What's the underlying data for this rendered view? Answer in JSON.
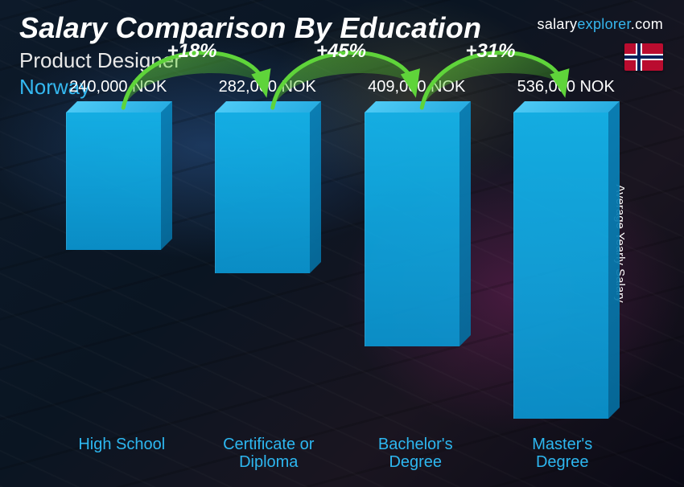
{
  "header": {
    "title": "Salary Comparison By Education",
    "subtitle": "Product Designer",
    "country": "Norway",
    "brand_prefix": "salary",
    "brand_mid": "explorer",
    "brand_suffix": ".com"
  },
  "flag": {
    "base": "#ba0c2f",
    "cross_outer": "#ffffff",
    "cross_inner": "#00205b"
  },
  "axis": {
    "ylabel": "Average Yearly Salary"
  },
  "chart": {
    "type": "bar",
    "currency": "NOK",
    "max_value": 560000,
    "bar_color": "#17a8e0",
    "bar_top_color": "#4cc9f5",
    "bar_side_color": "#0d8bc0",
    "label_color": "#ffffff",
    "category_color": "#2db7f0",
    "title_fontsize": 36,
    "value_fontsize": 20,
    "category_fontsize": 20,
    "pct_fontsize": 24,
    "background_color": "#0a1420",
    "categories": [
      {
        "label": "High School",
        "value": 240000,
        "value_label": "240,000 NOK"
      },
      {
        "label": "Certificate or Diploma",
        "value": 282000,
        "value_label": "282,000 NOK"
      },
      {
        "label": "Bachelor's Degree",
        "value": 409000,
        "value_label": "409,000 NOK"
      },
      {
        "label": "Master's Degree",
        "value": 536000,
        "value_label": "536,000 NOK"
      }
    ],
    "increases": [
      {
        "from": 0,
        "to": 1,
        "pct_label": "+18%"
      },
      {
        "from": 1,
        "to": 2,
        "pct_label": "+45%"
      },
      {
        "from": 2,
        "to": 3,
        "pct_label": "+31%"
      }
    ],
    "arc_stroke": "#5fd43a",
    "arc_fill_start": "#73e23c",
    "arc_fill_end": "#3aa51f",
    "arrow_fill": "#5fd43a"
  }
}
